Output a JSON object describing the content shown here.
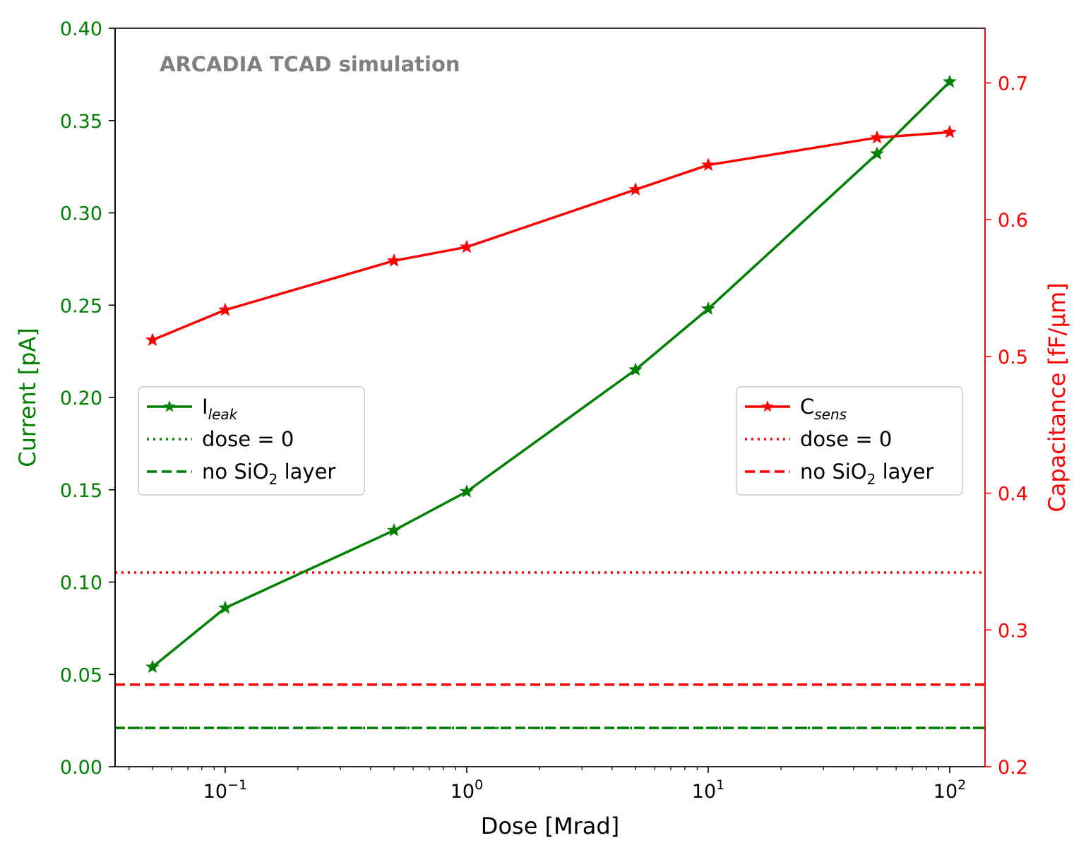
{
  "chart_data": {
    "type": "line",
    "annotation": "ARCADIA TCAD simulation",
    "xlabel": "Dose [Mrad]",
    "xscale": "log",
    "xlim": [
      0.035,
      140
    ],
    "x_ticks": [
      {
        "value": 0.1,
        "base": "10",
        "exp": "−1"
      },
      {
        "value": 1,
        "base": "10",
        "exp": "0"
      },
      {
        "value": 10,
        "base": "10",
        "exp": "1"
      },
      {
        "value": 100,
        "base": "10",
        "exp": "2"
      }
    ],
    "y_left": {
      "label": "Current [pA]",
      "color": "#008000",
      "lim": [
        0.0,
        0.4
      ],
      "ticks": [
        "0.00",
        "0.05",
        "0.10",
        "0.15",
        "0.20",
        "0.25",
        "0.30",
        "0.35",
        "0.40"
      ]
    },
    "y_right": {
      "label": "Capacitance [fF/μm]",
      "color": "#ff0000",
      "lim": [
        0.2,
        0.74
      ],
      "ticks": [
        "0.2",
        "0.3",
        "0.4",
        "0.5",
        "0.6",
        "0.7"
      ]
    },
    "x": [
      0.05,
      0.1,
      0.5,
      1,
      5,
      10,
      50,
      100
    ],
    "series": [
      {
        "axis": "left",
        "color": "#008000",
        "values": [
          0.054,
          0.086,
          0.128,
          0.149,
          0.215,
          0.248,
          0.332,
          0.371
        ]
      },
      {
        "axis": "right",
        "color": "#ff0000",
        "values": [
          0.512,
          0.534,
          0.57,
          0.58,
          0.622,
          0.64,
          0.66,
          0.664
        ]
      }
    ],
    "reference_lines": [
      {
        "axis": "left",
        "style": "dotted",
        "color": "#008000",
        "value": 0.021
      },
      {
        "axis": "left",
        "style": "dashed",
        "color": "#008000",
        "value": 0.021
      },
      {
        "axis": "right",
        "style": "dotted",
        "color": "#ff0000",
        "value": 0.342
      },
      {
        "axis": "right",
        "style": "dashed",
        "color": "#ff0000",
        "value": 0.26
      }
    ],
    "legend_left": {
      "placement": "center-left",
      "entries": [
        {
          "base": "I",
          "sub": "leak",
          "text": "",
          "style": "solid-star",
          "color": "#008000"
        },
        {
          "base": "",
          "sub": "",
          "text": "dose = 0",
          "style": "dotted",
          "color": "#008000"
        },
        {
          "base": "no SiO",
          "sub": "2",
          "text": " layer",
          "style": "dashed",
          "color": "#008000"
        }
      ]
    },
    "legend_right": {
      "placement": "center-right",
      "entries": [
        {
          "base": "C",
          "sub": "sens",
          "text": "",
          "style": "solid-star",
          "color": "#ff0000"
        },
        {
          "base": "",
          "sub": "",
          "text": "dose = 0",
          "style": "dotted",
          "color": "#ff0000"
        },
        {
          "base": "no SiO",
          "sub": "2",
          "text": " layer",
          "style": "dashed",
          "color": "#ff0000"
        }
      ]
    }
  }
}
